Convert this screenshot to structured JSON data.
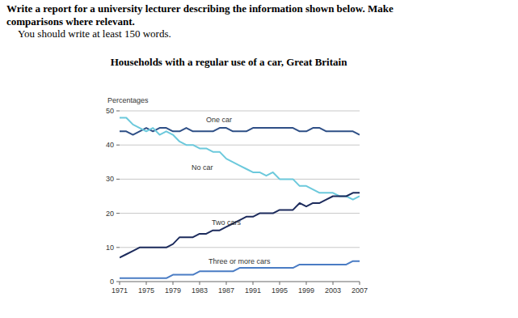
{
  "header": {
    "instruction": "Write a report for a university lecturer describing the information shown below. Make",
    "instruction_cont": "comparisons where relevant.",
    "word_count": "You should write at least 150 words."
  },
  "chart_data": {
    "type": "line",
    "title": "Households with a regular use of a car, Great Britain",
    "y_label": "Percentages",
    "x": [
      1971,
      1972,
      1973,
      1974,
      1975,
      1976,
      1977,
      1978,
      1979,
      1980,
      1981,
      1982,
      1983,
      1984,
      1985,
      1986,
      1987,
      1988,
      1989,
      1990,
      1991,
      1992,
      1993,
      1994,
      1995,
      1996,
      1997,
      1998,
      1999,
      2000,
      2001,
      2002,
      2003,
      2004,
      2005,
      2006,
      2007
    ],
    "series": [
      {
        "name": "One car",
        "color": "#2e4f86",
        "values": [
          44,
          44,
          43,
          44,
          45,
          44,
          45,
          45,
          44,
          44,
          45,
          44,
          44,
          44,
          44,
          45,
          45,
          44,
          44,
          44,
          45,
          45,
          45,
          45,
          45,
          45,
          45,
          44,
          44,
          45,
          45,
          44,
          44,
          44,
          44,
          44,
          43
        ]
      },
      {
        "name": "No car",
        "color": "#6cc9dc",
        "values": [
          48,
          48,
          46,
          45,
          44,
          45,
          43,
          44,
          43,
          41,
          40,
          40,
          39,
          39,
          38,
          38,
          36,
          35,
          34,
          33,
          32,
          32,
          31,
          32,
          30,
          30,
          30,
          28,
          28,
          27,
          26,
          26,
          26,
          25,
          25,
          24,
          25
        ]
      },
      {
        "name": "Two cars",
        "color": "#1c2b5c",
        "values": [
          7,
          8,
          9,
          10,
          10,
          10,
          10,
          10,
          11,
          13,
          13,
          13,
          14,
          14,
          15,
          15,
          16,
          17,
          18,
          19,
          19,
          20,
          20,
          20,
          21,
          21,
          21,
          23,
          22,
          23,
          23,
          24,
          25,
          25,
          25,
          26,
          26
        ]
      },
      {
        "name": "Three or more cars",
        "color": "#4a7cc4",
        "values": [
          1,
          1,
          1,
          1,
          1,
          1,
          1,
          1,
          2,
          2,
          2,
          2,
          3,
          3,
          3,
          3,
          3,
          3,
          4,
          4,
          4,
          4,
          4,
          4,
          4,
          4,
          4,
          5,
          5,
          5,
          5,
          5,
          5,
          5,
          5,
          6,
          6
        ]
      }
    ],
    "xlim": [
      1971,
      2007
    ],
    "xticks": [
      1971,
      1975,
      1979,
      1983,
      1987,
      1991,
      1995,
      1999,
      2003,
      2007
    ],
    "ylim": [
      0,
      50
    ],
    "yticks": [
      0,
      10,
      20,
      30,
      40,
      50
    ],
    "grid": true
  }
}
